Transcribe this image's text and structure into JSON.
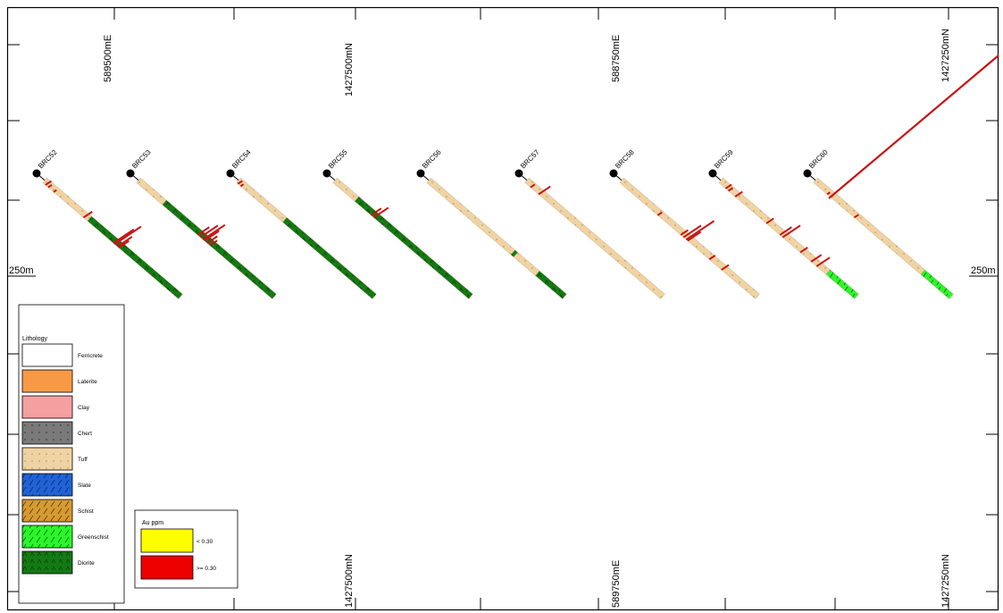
{
  "colors": {
    "ferricrete": "#ffffff",
    "laterite": "#f79a45",
    "clay": "#f4a0a0",
    "chert": "#7a7a7a",
    "tuff": "#f0d3a3",
    "slate": "#1f63d6",
    "schist": "#d59a32",
    "greenschist": "#2cf52c",
    "diorite": "#147a14",
    "au_low": "#ffff00",
    "au_high": "#ee0000",
    "assay_bar": "#c81414"
  },
  "grid": {
    "top": [
      "589500mE",
      "1427500mN",
      "588750mE",
      "1427250mN"
    ],
    "bottom": [
      "1427500mN",
      "589750mE",
      "1427250mN"
    ],
    "scale_left": "250m",
    "scale_right": "250m"
  },
  "holes": [
    {
      "id": "BRC52",
      "lithology": [
        "tuff",
        "diorite"
      ]
    },
    {
      "id": "BRC53",
      "lithology": [
        "tuff",
        "diorite"
      ]
    },
    {
      "id": "BRC54",
      "lithology": [
        "tuff",
        "diorite"
      ]
    },
    {
      "id": "BRC55",
      "lithology": [
        "tuff",
        "diorite"
      ]
    },
    {
      "id": "BRC56",
      "lithology": [
        "tuff",
        "diorite"
      ]
    },
    {
      "id": "BRC57",
      "lithology": [
        "tuff"
      ]
    },
    {
      "id": "BRC58",
      "lithology": [
        "tuff"
      ]
    },
    {
      "id": "BRC59",
      "lithology": [
        "tuff",
        "greenschist"
      ]
    },
    {
      "id": "BRC60",
      "lithology": [
        "tuff",
        "greenschist"
      ]
    }
  ],
  "legend": {
    "title": "Lithology",
    "items": [
      {
        "key": "ferricrete",
        "label": "Ferricrete"
      },
      {
        "key": "laterite",
        "label": "Laterite"
      },
      {
        "key": "clay",
        "label": "Clay"
      },
      {
        "key": "chert",
        "label": "Chert"
      },
      {
        "key": "tuff",
        "label": "Tuff"
      },
      {
        "key": "slate",
        "label": "Slate"
      },
      {
        "key": "schist",
        "label": "Schist"
      },
      {
        "key": "greenschist",
        "label": "Greenschist"
      },
      {
        "key": "diorite",
        "label": "Diorite"
      }
    ]
  },
  "au_legend": {
    "title": "Au ppm",
    "items": [
      {
        "key": "au_low",
        "label": "< 0.30"
      },
      {
        "key": "au_high",
        "label": ">= 0.30"
      }
    ]
  }
}
